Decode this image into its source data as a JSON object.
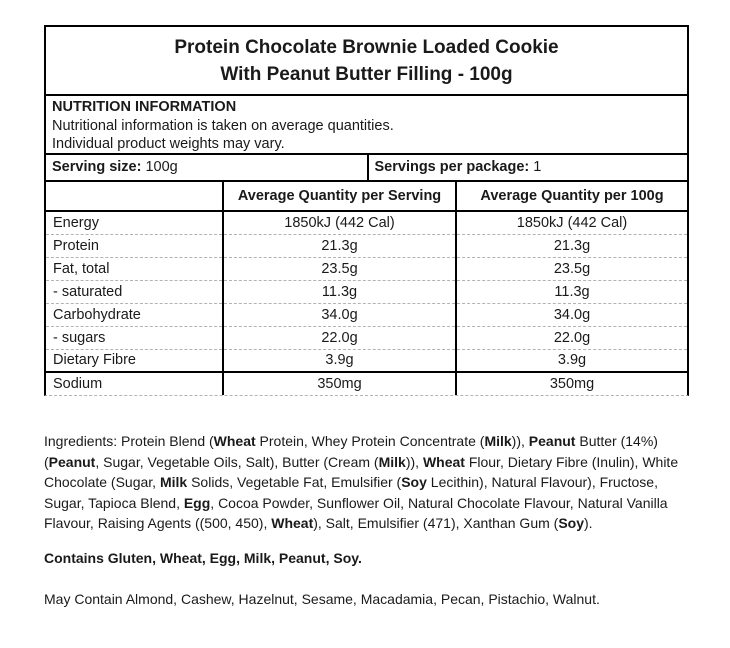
{
  "colors": {
    "background": "#ffffff",
    "border": "#000000",
    "dashed_line": "#b3b3b3",
    "text": "#1a1a1a"
  },
  "title": {
    "line1": "Protein Chocolate Brownie Loaded Cookie",
    "line2": "With Peanut Butter Filling - 100g"
  },
  "info": {
    "heading": "NUTRITION INFORMATION",
    "note1": "Nutritional information is taken on average quantities.",
    "note2": "Individual product weights may vary."
  },
  "serving": {
    "size_label": "Serving size:",
    "size_value": "100g",
    "per_package_label": "Servings per package:",
    "per_package_value": "1"
  },
  "table": {
    "columns": [
      "",
      "Average Quantity per Serving",
      "Average Quantity per 100g"
    ],
    "rows": [
      {
        "nutrient": "Energy",
        "per_serving": "1850kJ (442 Cal)",
        "per_100g": "1850kJ (442 Cal)"
      },
      {
        "nutrient": "Protein",
        "per_serving": "21.3g",
        "per_100g": "21.3g"
      },
      {
        "nutrient": "Fat, total",
        "per_serving": "23.5g",
        "per_100g": "23.5g"
      },
      {
        "nutrient": "- saturated",
        "per_serving": "11.3g",
        "per_100g": "11.3g"
      },
      {
        "nutrient": "Carbohydrate",
        "per_serving": "34.0g",
        "per_100g": "34.0g"
      },
      {
        "nutrient": "- sugars",
        "per_serving": "22.0g",
        "per_100g": "22.0g"
      },
      {
        "nutrient": "Dietary Fibre",
        "per_serving": "3.9g",
        "per_100g": "3.9g"
      },
      {
        "nutrient": "Sodium",
        "per_serving": "350mg",
        "per_100g": "350mg"
      }
    ]
  },
  "ingredients": {
    "segments": [
      {
        "text": "Ingredients: Protein Blend (",
        "bold": false
      },
      {
        "text": "Wheat",
        "bold": true
      },
      {
        "text": " Protein, Whey Protein Concentrate (",
        "bold": false
      },
      {
        "text": "Milk",
        "bold": true
      },
      {
        "text": ")), ",
        "bold": false
      },
      {
        "text": "Peanut",
        "bold": true
      },
      {
        "text": " Butter (14%) (",
        "bold": false
      },
      {
        "text": "Peanut",
        "bold": true
      },
      {
        "text": ", Sugar, Vegetable Oils, Salt), Butter (Cream (",
        "bold": false
      },
      {
        "text": "Milk",
        "bold": true
      },
      {
        "text": ")), ",
        "bold": false
      },
      {
        "text": "Wheat",
        "bold": true
      },
      {
        "text": " Flour, Dietary Fibre (Inulin), White Chocolate (Sugar, ",
        "bold": false
      },
      {
        "text": "Milk",
        "bold": true
      },
      {
        "text": " Solids, Vegetable Fat, Emulsifier (",
        "bold": false
      },
      {
        "text": "Soy",
        "bold": true
      },
      {
        "text": " Lecithin), Natural Flavour), Fructose, Sugar, Tapioca Blend, ",
        "bold": false
      },
      {
        "text": "Egg",
        "bold": true
      },
      {
        "text": ", Cocoa Powder, Sunflower Oil, Natural Chocolate Flavour, Natural Vanilla Flavour, Raising Agents ((500, 450), ",
        "bold": false
      },
      {
        "text": "Wheat",
        "bold": true
      },
      {
        "text": "), Salt, Emulsifier (471), Xanthan Gum (",
        "bold": false
      },
      {
        "text": "Soy",
        "bold": true
      },
      {
        "text": ").",
        "bold": false
      }
    ]
  },
  "contains_statement": "Contains Gluten, Wheat, Egg, Milk, Peanut, Soy.",
  "may_contain_statement": "May Contain Almond, Cashew, Hazelnut, Sesame, Macadamia, Pecan, Pistachio, Walnut."
}
